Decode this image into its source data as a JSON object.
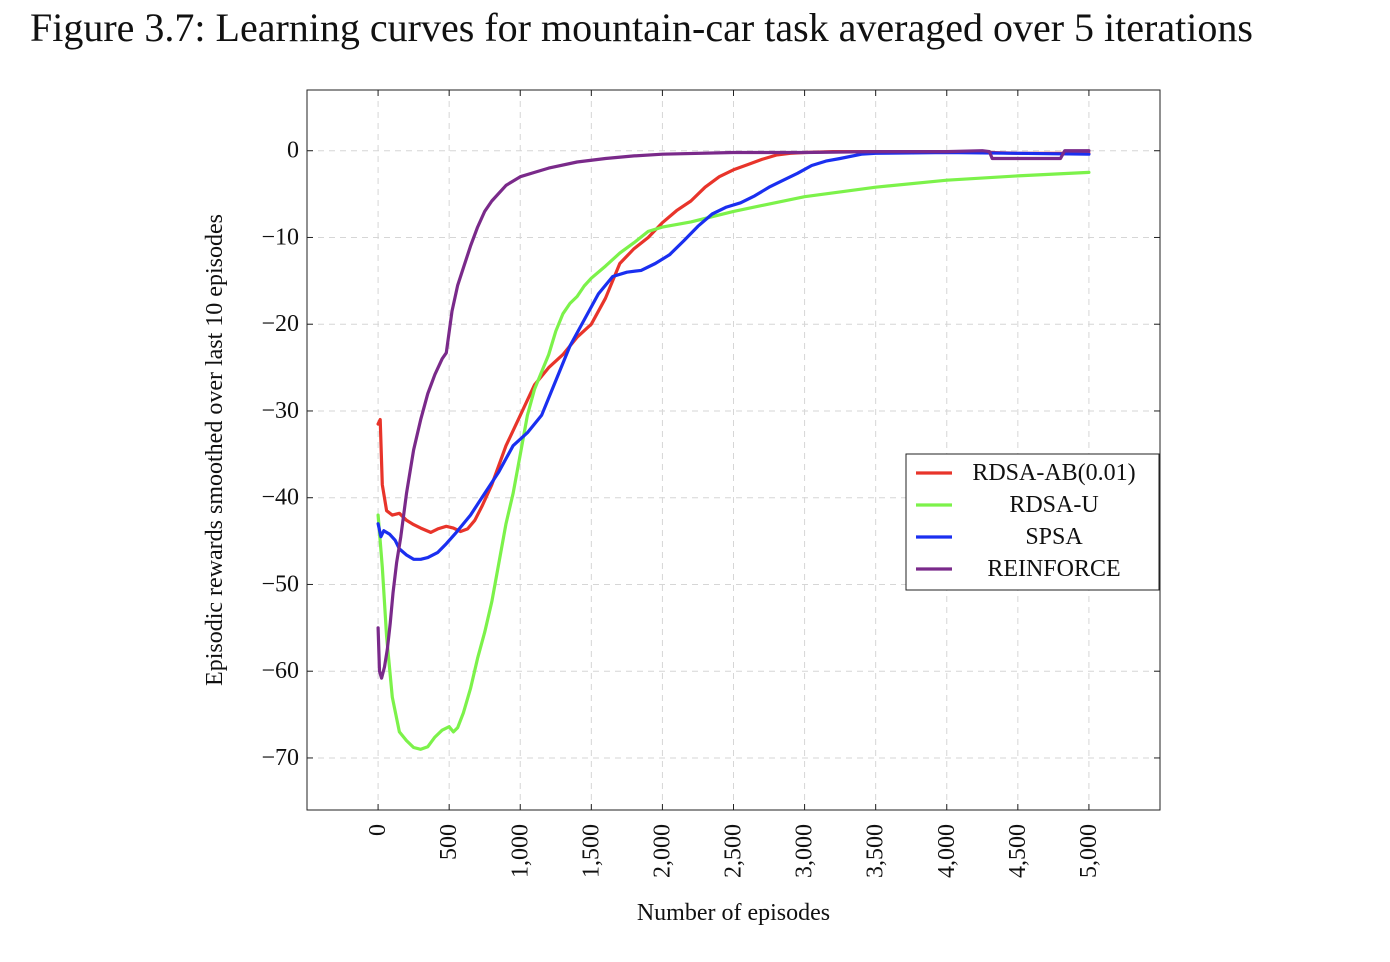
{
  "figure": {
    "caption": "Figure 3.7: Learning curves for mountain-car task averaged over 5 iterations"
  },
  "chart_data": {
    "type": "line",
    "title": "",
    "xlabel": "Number of episodes",
    "ylabel": "Episodic rewards smoothed over last 10 episodes",
    "xlim": [
      -500,
      5500
    ],
    "ylim": [
      -76,
      7
    ],
    "x_ticks": [
      0,
      500,
      1000,
      1500,
      2000,
      2500,
      3000,
      3500,
      4000,
      4500,
      5000
    ],
    "x_tick_labels": [
      "0",
      "500",
      "1,000",
      "1,500",
      "2,000",
      "2,500",
      "3,000",
      "3,500",
      "4,000",
      "4,500",
      "5,000"
    ],
    "y_ticks": [
      0,
      -10,
      -20,
      -30,
      -40,
      -50,
      -60,
      -70
    ],
    "y_tick_labels": [
      "0",
      "−10",
      "−20",
      "−30",
      "−40",
      "−50",
      "−60",
      "−70"
    ],
    "grid": true,
    "legend_position": "right",
    "series": [
      {
        "name": "RDSA-AB(0.01)",
        "color": "#e8342a",
        "points": [
          [
            0,
            -31.5
          ],
          [
            15,
            -31
          ],
          [
            30,
            -38.5
          ],
          [
            60,
            -41.5
          ],
          [
            100,
            -42
          ],
          [
            150,
            -41.8
          ],
          [
            200,
            -42.6
          ],
          [
            250,
            -43.1
          ],
          [
            300,
            -43.5
          ],
          [
            370,
            -44
          ],
          [
            420,
            -43.6
          ],
          [
            480,
            -43.3
          ],
          [
            530,
            -43.5
          ],
          [
            580,
            -43.9
          ],
          [
            630,
            -43.6
          ],
          [
            680,
            -42.6
          ],
          [
            730,
            -41
          ],
          [
            800,
            -38.5
          ],
          [
            900,
            -34
          ],
          [
            1000,
            -30.5
          ],
          [
            1100,
            -27
          ],
          [
            1200,
            -25
          ],
          [
            1300,
            -23.5
          ],
          [
            1400,
            -21.5
          ],
          [
            1500,
            -20
          ],
          [
            1600,
            -17
          ],
          [
            1700,
            -13
          ],
          [
            1800,
            -11.3
          ],
          [
            1900,
            -10
          ],
          [
            2000,
            -8.3
          ],
          [
            2100,
            -6.9
          ],
          [
            2200,
            -5.8
          ],
          [
            2300,
            -4.2
          ],
          [
            2400,
            -3
          ],
          [
            2500,
            -2.2
          ],
          [
            2600,
            -1.6
          ],
          [
            2700,
            -1
          ],
          [
            2800,
            -0.5
          ],
          [
            2900,
            -0.3
          ],
          [
            3000,
            -0.2
          ],
          [
            3200,
            -0.1
          ],
          [
            3500,
            -0.1
          ],
          [
            4000,
            -0.1
          ],
          [
            4300,
            -0.2
          ],
          [
            4500,
            -0.3
          ],
          [
            5000,
            -0.3
          ]
        ]
      },
      {
        "name": "RDSA-U",
        "color": "#7cf24a",
        "points": [
          [
            0,
            -42
          ],
          [
            30,
            -48
          ],
          [
            60,
            -56
          ],
          [
            100,
            -63
          ],
          [
            150,
            -67
          ],
          [
            200,
            -68
          ],
          [
            250,
            -68.8
          ],
          [
            300,
            -69
          ],
          [
            350,
            -68.7
          ],
          [
            400,
            -67.6
          ],
          [
            450,
            -66.8
          ],
          [
            500,
            -66.4
          ],
          [
            530,
            -67
          ],
          [
            560,
            -66.5
          ],
          [
            600,
            -64.8
          ],
          [
            650,
            -62
          ],
          [
            700,
            -58.5
          ],
          [
            750,
            -55.5
          ],
          [
            800,
            -52
          ],
          [
            850,
            -47.5
          ],
          [
            900,
            -43
          ],
          [
            950,
            -39.5
          ],
          [
            1000,
            -35
          ],
          [
            1050,
            -30.5
          ],
          [
            1100,
            -27.5
          ],
          [
            1150,
            -25.5
          ],
          [
            1200,
            -23.5
          ],
          [
            1250,
            -20.8
          ],
          [
            1300,
            -18.8
          ],
          [
            1350,
            -17.6
          ],
          [
            1400,
            -16.8
          ],
          [
            1450,
            -15.6
          ],
          [
            1500,
            -14.7
          ],
          [
            1600,
            -13.3
          ],
          [
            1700,
            -11.8
          ],
          [
            1800,
            -10.6
          ],
          [
            1900,
            -9.3
          ],
          [
            2000,
            -8.8
          ],
          [
            2200,
            -8.2
          ],
          [
            2500,
            -7
          ],
          [
            3000,
            -5.3
          ],
          [
            3500,
            -4.2
          ],
          [
            4000,
            -3.4
          ],
          [
            4500,
            -2.9
          ],
          [
            5000,
            -2.5
          ]
        ]
      },
      {
        "name": "SPSA",
        "color": "#1a2ff0",
        "points": [
          [
            0,
            -43
          ],
          [
            20,
            -44.5
          ],
          [
            40,
            -43.8
          ],
          [
            80,
            -44.2
          ],
          [
            120,
            -44.9
          ],
          [
            150,
            -45.9
          ],
          [
            200,
            -46.6
          ],
          [
            250,
            -47.1
          ],
          [
            300,
            -47.1
          ],
          [
            350,
            -46.9
          ],
          [
            420,
            -46.3
          ],
          [
            480,
            -45.3
          ],
          [
            550,
            -44
          ],
          [
            650,
            -42
          ],
          [
            750,
            -39.5
          ],
          [
            850,
            -37
          ],
          [
            950,
            -34
          ],
          [
            1050,
            -32.5
          ],
          [
            1150,
            -30.5
          ],
          [
            1250,
            -26.5
          ],
          [
            1350,
            -22.5
          ],
          [
            1450,
            -19.5
          ],
          [
            1550,
            -16.5
          ],
          [
            1650,
            -14.5
          ],
          [
            1750,
            -14
          ],
          [
            1850,
            -13.8
          ],
          [
            1950,
            -13
          ],
          [
            2050,
            -12
          ],
          [
            2150,
            -10.4
          ],
          [
            2250,
            -8.7
          ],
          [
            2350,
            -7.3
          ],
          [
            2450,
            -6.5
          ],
          [
            2550,
            -6
          ],
          [
            2650,
            -5.2
          ],
          [
            2750,
            -4.2
          ],
          [
            2850,
            -3.4
          ],
          [
            2950,
            -2.6
          ],
          [
            3050,
            -1.7
          ],
          [
            3150,
            -1.2
          ],
          [
            3250,
            -0.9
          ],
          [
            3400,
            -0.4
          ],
          [
            3500,
            -0.3
          ],
          [
            4000,
            -0.2
          ],
          [
            4500,
            -0.3
          ],
          [
            5000,
            -0.4
          ]
        ]
      },
      {
        "name": "REINFORCE",
        "color": "#7a2a8a",
        "points": [
          [
            0,
            -55
          ],
          [
            10,
            -60
          ],
          [
            25,
            -60.8
          ],
          [
            45,
            -59.5
          ],
          [
            65,
            -57.5
          ],
          [
            85,
            -54.5
          ],
          [
            105,
            -51
          ],
          [
            130,
            -47.5
          ],
          [
            160,
            -44.5
          ],
          [
            200,
            -39.5
          ],
          [
            250,
            -34.5
          ],
          [
            300,
            -31
          ],
          [
            350,
            -28
          ],
          [
            400,
            -25.8
          ],
          [
            450,
            -24
          ],
          [
            480,
            -23.3
          ],
          [
            520,
            -18.5
          ],
          [
            560,
            -15.5
          ],
          [
            600,
            -13.5
          ],
          [
            650,
            -11
          ],
          [
            700,
            -8.8
          ],
          [
            750,
            -7
          ],
          [
            800,
            -5.8
          ],
          [
            900,
            -4
          ],
          [
            1000,
            -3
          ],
          [
            1100,
            -2.5
          ],
          [
            1200,
            -2
          ],
          [
            1400,
            -1.3
          ],
          [
            1600,
            -0.9
          ],
          [
            1800,
            -0.6
          ],
          [
            2000,
            -0.4
          ],
          [
            2500,
            -0.2
          ],
          [
            3000,
            -0.2
          ],
          [
            3500,
            -0.1
          ],
          [
            4000,
            -0.1
          ],
          [
            4250,
            0
          ],
          [
            4300,
            -0.1
          ],
          [
            4320,
            -0.9
          ],
          [
            4500,
            -0.9
          ],
          [
            4800,
            -0.9
          ],
          [
            4830,
            0
          ],
          [
            5000,
            0
          ]
        ]
      }
    ]
  }
}
